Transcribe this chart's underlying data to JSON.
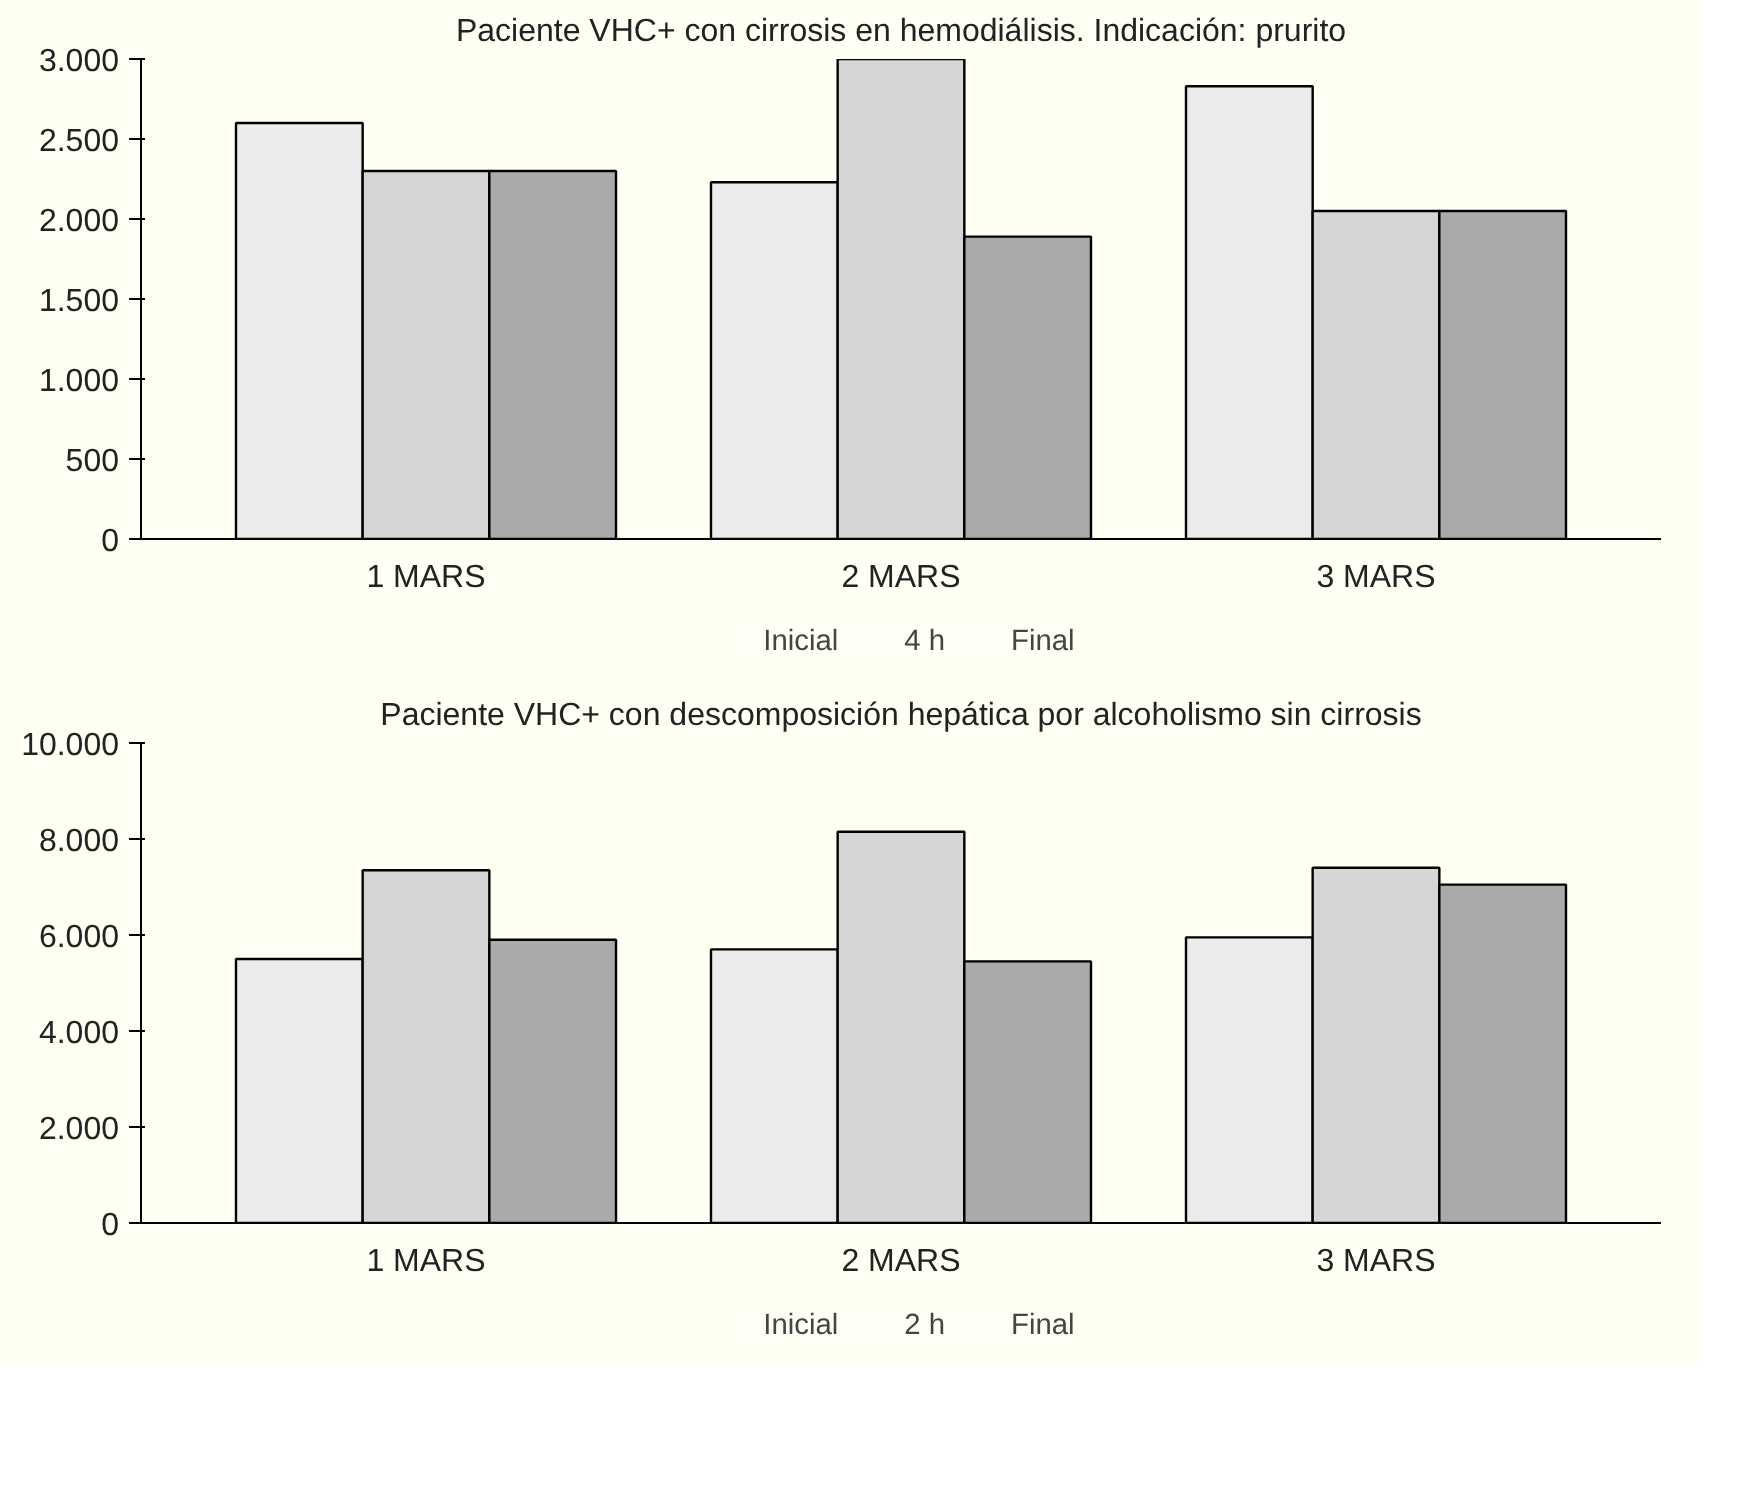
{
  "chart_data": [
    {
      "type": "bar",
      "title": "Paciente VHC+ con cirrosis en hemodiálisis. Indicación: prurito",
      "categories": [
        "1 MARS",
        "2 MARS",
        "3 MARS"
      ],
      "series": [
        {
          "name": "Inicial",
          "color": "#ebebeb",
          "values": [
            2600,
            2230,
            2830
          ]
        },
        {
          "name": "4 h",
          "color": "#d5d5d5",
          "values": [
            2300,
            3000,
            2050
          ]
        },
        {
          "name": "Final",
          "color": "#aaaaaa",
          "values": [
            2300,
            1890,
            2050
          ]
        }
      ],
      "ylim": [
        0,
        3000
      ],
      "yticks": [
        0,
        500,
        {
          "value": 1000,
          "label": "1.000"
        },
        {
          "value": 1500,
          "label": "1.500"
        },
        {
          "value": 2000,
          "label": "2.000"
        },
        {
          "value": 2500,
          "label": "2.500"
        },
        {
          "value": 3000,
          "label": "3.000"
        }
      ],
      "grid": false,
      "legend": "bottom"
    },
    {
      "type": "bar",
      "title": "Paciente VHC+ con descomposición hepática por alcoholismo sin cirrosis",
      "categories": [
        "1 MARS",
        "2 MARS",
        "3 MARS"
      ],
      "series": [
        {
          "name": "Inicial",
          "color": "#ebebeb",
          "values": [
            5500,
            5700,
            5950
          ]
        },
        {
          "name": "2 h",
          "color": "#d5d5d5",
          "values": [
            7350,
            8150,
            7400
          ]
        },
        {
          "name": "Final",
          "color": "#aaaaaa",
          "values": [
            5900,
            5450,
            7050
          ]
        }
      ],
      "ylim": [
        0,
        10000
      ],
      "yticks": [
        0,
        {
          "value": 2000,
          "label": "2.000"
        },
        {
          "value": 4000,
          "label": "4.000"
        },
        {
          "value": 6000,
          "label": "6.000"
        },
        {
          "value": 8000,
          "label": "8.000"
        },
        {
          "value": 10000,
          "label": "10.000"
        }
      ],
      "grid": false,
      "legend": "bottom"
    }
  ]
}
